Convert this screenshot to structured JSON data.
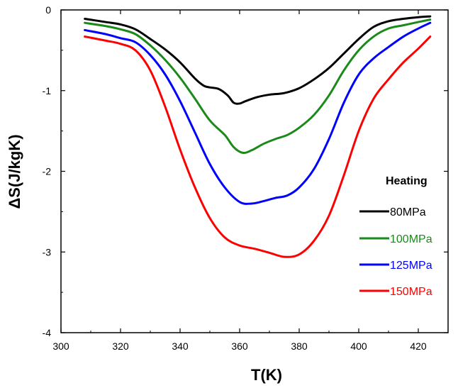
{
  "chart_data": {
    "type": "line",
    "title": "",
    "xlabel": "T(K)",
    "ylabel": "ΔS(J/kgK)",
    "xlim": [
      300,
      430
    ],
    "ylim": [
      -4,
      0
    ],
    "x_ticks": [
      300,
      320,
      340,
      360,
      380,
      400,
      420
    ],
    "y_ticks": [
      0,
      -1,
      -2,
      -3,
      -4
    ],
    "grid": false,
    "legend_title": "Heating",
    "legend_position": "right",
    "series": [
      {
        "name": "80MPa",
        "color": "#000000",
        "points": [
          [
            308,
            -0.11
          ],
          [
            315,
            -0.15
          ],
          [
            320,
            -0.18
          ],
          [
            325,
            -0.24
          ],
          [
            330,
            -0.36
          ],
          [
            335,
            -0.49
          ],
          [
            340,
            -0.65
          ],
          [
            345,
            -0.85
          ],
          [
            348,
            -0.94
          ],
          [
            350,
            -0.96
          ],
          [
            353,
            -0.98
          ],
          [
            356,
            -1.06
          ],
          [
            358,
            -1.15
          ],
          [
            360,
            -1.16
          ],
          [
            362,
            -1.13
          ],
          [
            366,
            -1.08
          ],
          [
            370,
            -1.05
          ],
          [
            375,
            -1.03
          ],
          [
            380,
            -0.97
          ],
          [
            385,
            -0.86
          ],
          [
            390,
            -0.72
          ],
          [
            395,
            -0.54
          ],
          [
            400,
            -0.36
          ],
          [
            405,
            -0.21
          ],
          [
            410,
            -0.14
          ],
          [
            415,
            -0.11
          ],
          [
            420,
            -0.09
          ],
          [
            424,
            -0.08
          ]
        ]
      },
      {
        "name": "100MPa",
        "color": "#1a8a1a",
        "points": [
          [
            308,
            -0.16
          ],
          [
            315,
            -0.2
          ],
          [
            320,
            -0.24
          ],
          [
            325,
            -0.3
          ],
          [
            330,
            -0.44
          ],
          [
            335,
            -0.62
          ],
          [
            340,
            -0.84
          ],
          [
            345,
            -1.1
          ],
          [
            350,
            -1.37
          ],
          [
            355,
            -1.55
          ],
          [
            358,
            -1.7
          ],
          [
            361,
            -1.77
          ],
          [
            364,
            -1.74
          ],
          [
            368,
            -1.66
          ],
          [
            372,
            -1.6
          ],
          [
            376,
            -1.55
          ],
          [
            380,
            -1.46
          ],
          [
            385,
            -1.3
          ],
          [
            390,
            -1.06
          ],
          [
            395,
            -0.75
          ],
          [
            400,
            -0.5
          ],
          [
            405,
            -0.33
          ],
          [
            410,
            -0.23
          ],
          [
            415,
            -0.19
          ],
          [
            420,
            -0.15
          ],
          [
            424,
            -0.12
          ]
        ]
      },
      {
        "name": "125MPa",
        "color": "#0000ff",
        "points": [
          [
            308,
            -0.25
          ],
          [
            315,
            -0.3
          ],
          [
            320,
            -0.35
          ],
          [
            325,
            -0.4
          ],
          [
            330,
            -0.56
          ],
          [
            335,
            -0.8
          ],
          [
            340,
            -1.13
          ],
          [
            345,
            -1.52
          ],
          [
            350,
            -1.91
          ],
          [
            355,
            -2.2
          ],
          [
            360,
            -2.38
          ],
          [
            364,
            -2.4
          ],
          [
            368,
            -2.37
          ],
          [
            372,
            -2.33
          ],
          [
            376,
            -2.3
          ],
          [
            380,
            -2.2
          ],
          [
            385,
            -1.97
          ],
          [
            390,
            -1.6
          ],
          [
            395,
            -1.15
          ],
          [
            400,
            -0.8
          ],
          [
            405,
            -0.6
          ],
          [
            410,
            -0.46
          ],
          [
            415,
            -0.33
          ],
          [
            420,
            -0.23
          ],
          [
            424,
            -0.16
          ]
        ]
      },
      {
        "name": "150MPa",
        "color": "#ff0000",
        "points": [
          [
            308,
            -0.33
          ],
          [
            315,
            -0.38
          ],
          [
            320,
            -0.42
          ],
          [
            325,
            -0.5
          ],
          [
            330,
            -0.75
          ],
          [
            335,
            -1.2
          ],
          [
            340,
            -1.73
          ],
          [
            345,
            -2.2
          ],
          [
            350,
            -2.58
          ],
          [
            355,
            -2.82
          ],
          [
            360,
            -2.92
          ],
          [
            365,
            -2.96
          ],
          [
            370,
            -3.01
          ],
          [
            375,
            -3.06
          ],
          [
            380,
            -3.03
          ],
          [
            385,
            -2.86
          ],
          [
            390,
            -2.55
          ],
          [
            395,
            -2.05
          ],
          [
            400,
            -1.5
          ],
          [
            405,
            -1.1
          ],
          [
            410,
            -0.86
          ],
          [
            415,
            -0.65
          ],
          [
            420,
            -0.48
          ],
          [
            424,
            -0.33
          ]
        ]
      }
    ]
  }
}
